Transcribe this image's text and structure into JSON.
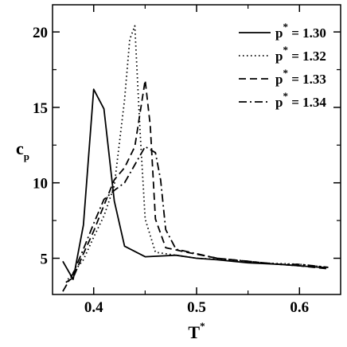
{
  "chart_data": {
    "type": "line",
    "title": "",
    "xlabel": {
      "base": "T",
      "sup": "*"
    },
    "ylabel": {
      "base": "c",
      "sub": "p"
    },
    "xlim": [
      0.36,
      0.64
    ],
    "ylim": [
      2.6,
      21.8
    ],
    "xticks": [
      0.4,
      0.5,
      0.6
    ],
    "xtick_labels": [
      "0.4",
      "0.5",
      "0.6"
    ],
    "yticks": [
      5,
      10,
      15,
      20
    ],
    "ytick_labels": [
      "5",
      "10",
      "15",
      "20"
    ],
    "grid": false,
    "legend_position": "top-right",
    "series": [
      {
        "name": {
          "base": "p",
          "sup": "*",
          "value": " = 1.30"
        },
        "dash": "solid",
        "points": [
          [
            0.37,
            4.8
          ],
          [
            0.38,
            3.6
          ],
          [
            0.39,
            7.2
          ],
          [
            0.4,
            16.2
          ],
          [
            0.41,
            14.9
          ],
          [
            0.42,
            8.8
          ],
          [
            0.43,
            5.8
          ],
          [
            0.45,
            5.1
          ],
          [
            0.48,
            5.2
          ],
          [
            0.5,
            5.0
          ],
          [
            0.52,
            4.9
          ],
          [
            0.55,
            4.7
          ],
          [
            0.58,
            4.6
          ],
          [
            0.6,
            4.5
          ],
          [
            0.62,
            4.4
          ],
          [
            0.628,
            4.4
          ]
        ]
      },
      {
        "name": {
          "base": "p",
          "sup": "*",
          "value": " = 1.32"
        },
        "dash": "dotted",
        "points": [
          [
            0.375,
            3.6
          ],
          [
            0.39,
            4.9
          ],
          [
            0.4,
            6.4
          ],
          [
            0.41,
            7.8
          ],
          [
            0.42,
            9.8
          ],
          [
            0.43,
            15.5
          ],
          [
            0.435,
            19.5
          ],
          [
            0.44,
            20.4
          ],
          [
            0.445,
            13.5
          ],
          [
            0.45,
            7.6
          ],
          [
            0.46,
            5.4
          ],
          [
            0.48,
            5.2
          ],
          [
            0.5,
            5.0
          ],
          [
            0.53,
            4.9
          ],
          [
            0.56,
            4.7
          ],
          [
            0.6,
            4.6
          ],
          [
            0.628,
            4.4
          ]
        ]
      },
      {
        "name": {
          "base": "p",
          "sup": "*",
          "value": " = 1.33"
        },
        "dash": "dashed",
        "points": [
          [
            0.373,
            3.4
          ],
          [
            0.38,
            3.7
          ],
          [
            0.39,
            5.3
          ],
          [
            0.4,
            6.8
          ],
          [
            0.41,
            8.5
          ],
          [
            0.42,
            10.2
          ],
          [
            0.43,
            11.0
          ],
          [
            0.44,
            12.4
          ],
          [
            0.45,
            16.8
          ],
          [
            0.455,
            13.8
          ],
          [
            0.46,
            7.6
          ],
          [
            0.47,
            5.7
          ],
          [
            0.49,
            5.4
          ],
          [
            0.52,
            5.0
          ],
          [
            0.55,
            4.8
          ],
          [
            0.58,
            4.6
          ],
          [
            0.6,
            4.5
          ],
          [
            0.628,
            4.3
          ]
        ]
      },
      {
        "name": {
          "base": "p",
          "sup": "*",
          "value": " = 1.34"
        },
        "dash": "dashdot",
        "points": [
          [
            0.37,
            2.8
          ],
          [
            0.38,
            4.0
          ],
          [
            0.39,
            5.6
          ],
          [
            0.4,
            7.3
          ],
          [
            0.41,
            8.9
          ],
          [
            0.42,
            9.5
          ],
          [
            0.43,
            10.0
          ],
          [
            0.44,
            11.2
          ],
          [
            0.45,
            12.4
          ],
          [
            0.46,
            12.0
          ],
          [
            0.465,
            10.2
          ],
          [
            0.47,
            6.9
          ],
          [
            0.48,
            5.6
          ],
          [
            0.5,
            5.3
          ],
          [
            0.52,
            5.0
          ],
          [
            0.55,
            4.8
          ],
          [
            0.58,
            4.6
          ],
          [
            0.6,
            4.6
          ],
          [
            0.628,
            4.4
          ]
        ]
      }
    ]
  }
}
